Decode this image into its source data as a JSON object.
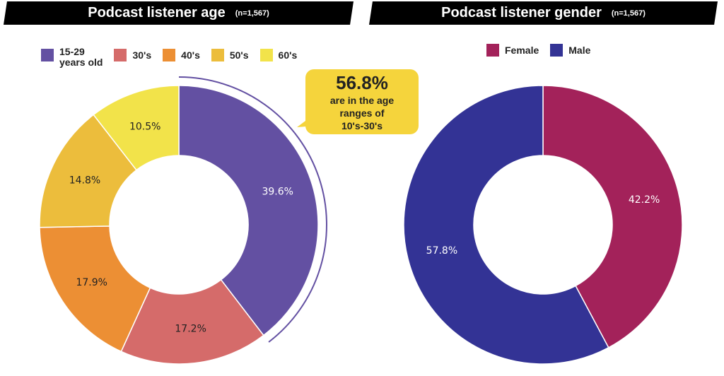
{
  "chart_data": [
    {
      "type": "pie",
      "donut": true,
      "title": "Podcast listener age",
      "subtitle": "(n=1,567)",
      "categories": [
        "15-29 years old",
        "30's",
        "40's",
        "50's",
        "60's"
      ],
      "values": [
        39.6,
        17.2,
        17.9,
        14.8,
        10.5
      ],
      "labels": [
        "39.6%",
        "17.2%",
        "17.9%",
        "14.8%",
        "10.5%"
      ],
      "colors": [
        "#6350a2",
        "#d56b6a",
        "#ec8f34",
        "#ecbd3c",
        "#f2e34a"
      ],
      "label_colors": [
        "#ffffff",
        "#222222",
        "#222222",
        "#222222",
        "#222222"
      ],
      "legend_position": "top",
      "annotation": {
        "value": "56.8%",
        "text": [
          "are in the age",
          "ranges of",
          "10's-30's"
        ]
      }
    },
    {
      "type": "pie",
      "donut": true,
      "title": "Podcast listener gender",
      "subtitle": "(n=1,567)",
      "categories": [
        "Female",
        "Male"
      ],
      "values": [
        42.2,
        57.8
      ],
      "labels": [
        "42.2%",
        "57.8%"
      ],
      "colors": [
        "#a3225a",
        "#333395"
      ],
      "label_colors": [
        "#ffffff",
        "#ffffff"
      ],
      "legend_position": "top"
    }
  ]
}
